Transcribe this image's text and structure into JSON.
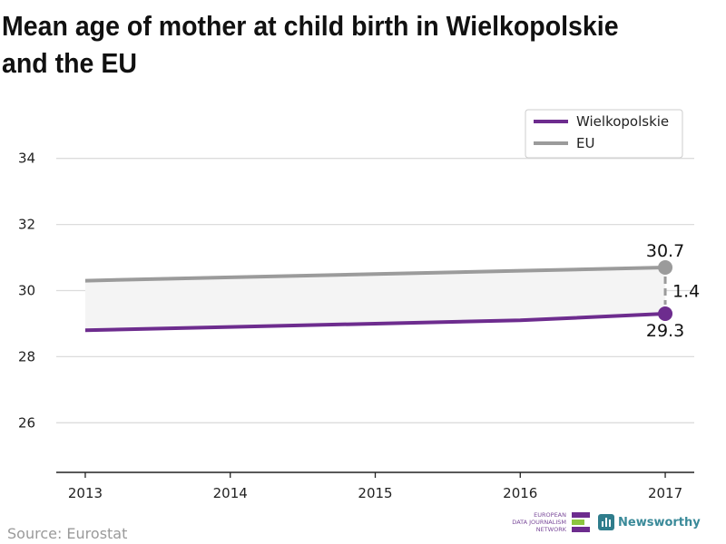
{
  "title": "Mean age of mother at child birth in Wielkopolskie and the EU",
  "source": "Source: Eurostat",
  "logos": {
    "edjn_lines": [
      "EUROPEAN",
      "DATA JOURNALISM",
      "NETWORK"
    ],
    "newsworthy": "Newsworthy"
  },
  "colors": {
    "wielkopolskie": "#6d2c8e",
    "eu": "#9b9b9b",
    "gap_fill": "#f4f4f4",
    "grid": "#dcdcdc"
  },
  "chart_data": {
    "type": "line",
    "x": [
      2013,
      2014,
      2015,
      2016,
      2017
    ],
    "series": [
      {
        "name": "Wielkopolskie",
        "values": [
          28.8,
          28.9,
          29.0,
          29.1,
          29.3
        ]
      },
      {
        "name": "EU",
        "values": [
          30.3,
          30.4,
          30.5,
          30.6,
          30.7
        ]
      }
    ],
    "y_ticks": [
      26,
      28,
      30,
      32,
      34
    ],
    "ylim": [
      24.5,
      35.5
    ],
    "xlim": [
      2012.8,
      2017.2
    ],
    "grid": true,
    "legend_position": "top-right",
    "annotations": {
      "eu_last": "30.7",
      "wielkopolskie_last": "29.3",
      "difference": "1.4"
    }
  }
}
